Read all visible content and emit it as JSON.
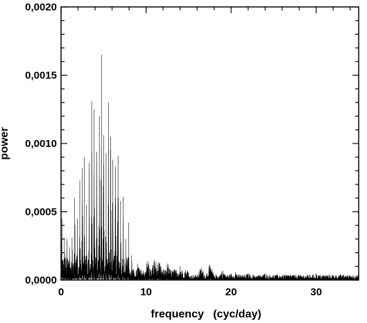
{
  "chart_data": {
    "type": "line",
    "title": "",
    "xlabel": "frequency   (cyc/day)",
    "ylabel": "power",
    "xlim": [
      0,
      35
    ],
    "ylim": [
      0,
      0.002
    ],
    "x_ticks": [
      0,
      10,
      20,
      30
    ],
    "x_tick_labels": [
      "0",
      "10",
      "20",
      "30"
    ],
    "y_ticks": [
      0,
      0.0005,
      0.001,
      0.0015,
      0.002
    ],
    "y_tick_labels": [
      "0,0000",
      "0,0005",
      "0,0010",
      "0,0015",
      "0,0020"
    ],
    "grid": false,
    "legend": "none",
    "line_color": "#000000",
    "series": [
      {
        "peaks": [
          {
            "x": 0.1,
            "y": 0.00045
          },
          {
            "x": 0.4,
            "y": 0.00031
          },
          {
            "x": 0.7,
            "y": 0.0003
          },
          {
            "x": 1.0,
            "y": 0.00024
          },
          {
            "x": 1.3,
            "y": 0.00031
          },
          {
            "x": 1.6,
            "y": 0.0006
          },
          {
            "x": 1.9,
            "y": 0.00045
          },
          {
            "x": 2.2,
            "y": 0.00073
          },
          {
            "x": 2.5,
            "y": 0.00082
          },
          {
            "x": 2.75,
            "y": 0.0009
          },
          {
            "x": 3.0,
            "y": 0.00055
          },
          {
            "x": 3.3,
            "y": 0.00086
          },
          {
            "x": 3.6,
            "y": 0.00131
          },
          {
            "x": 3.9,
            "y": 0.00125
          },
          {
            "x": 4.2,
            "y": 0.00094
          },
          {
            "x": 4.5,
            "y": 0.0012
          },
          {
            "x": 4.75,
            "y": 0.00165
          },
          {
            "x": 5.0,
            "y": 0.00106
          },
          {
            "x": 5.3,
            "y": 0.00093
          },
          {
            "x": 5.6,
            "y": 0.0013
          },
          {
            "x": 5.85,
            "y": 0.00105
          },
          {
            "x": 6.1,
            "y": 0.00088
          },
          {
            "x": 6.4,
            "y": 0.00083
          },
          {
            "x": 6.7,
            "y": 0.00091
          },
          {
            "x": 7.0,
            "y": 0.00058
          },
          {
            "x": 7.3,
            "y": 0.00061
          },
          {
            "x": 7.6,
            "y": 0.0003
          },
          {
            "x": 7.95,
            "y": 0.00042
          },
          {
            "x": 8.3,
            "y": 0.00018
          },
          {
            "x": 9.0,
            "y": 0.00012
          },
          {
            "x": 10.2,
            "y": 0.00014
          },
          {
            "x": 11.0,
            "y": 0.00015
          },
          {
            "x": 11.5,
            "y": 0.00013
          },
          {
            "x": 12.5,
            "y": 0.00012
          },
          {
            "x": 14.0,
            "y": 0.0001
          },
          {
            "x": 16.5,
            "y": 9e-05
          },
          {
            "x": 17.5,
            "y": 0.00011
          },
          {
            "x": 19.0,
            "y": 7e-05
          },
          {
            "x": 20.5,
            "y": 6e-05
          },
          {
            "x": 22.0,
            "y": 5e-05
          },
          {
            "x": 24.0,
            "y": 5e-05
          },
          {
            "x": 27.0,
            "y": 4e-05
          },
          {
            "x": 30.0,
            "y": 3e-05
          },
          {
            "x": 33.0,
            "y": 3e-05
          },
          {
            "x": 34.5,
            "y": 3e-05
          }
        ]
      }
    ]
  }
}
